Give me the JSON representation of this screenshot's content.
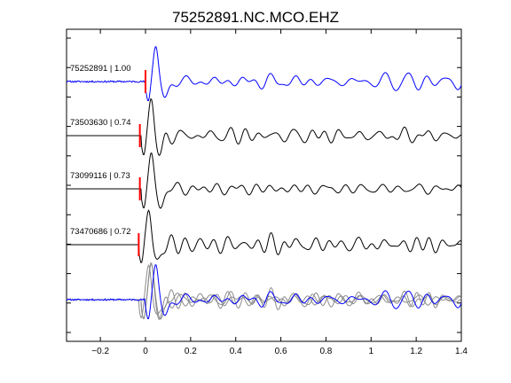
{
  "chart_data": {
    "type": "line",
    "title": "75252891.NC.MCO.EHZ",
    "xlabel": "",
    "ylabel": "",
    "xlim": [
      -0.35,
      1.4
    ],
    "xticks": [
      -0.2,
      0,
      0.2,
      0.4,
      0.6,
      0.8,
      1,
      1.2,
      1.4
    ],
    "xtick_labels": [
      "−0.2",
      "0",
      "0.2",
      "0.4",
      "0.6",
      "0.8",
      "1",
      "1.2",
      "1.4"
    ],
    "grid": false,
    "legend": "none",
    "pick_marker_color": "#ff0000",
    "colors": {
      "master": "#0000ff",
      "correlated": "#000000",
      "overlay": "#8c8c8c"
    },
    "series": [
      {
        "label": "75252891 | 1.00",
        "event_id": "75252891",
        "correlation": 1.0,
        "color": "#0000ff",
        "pick_time": 0.0,
        "onset_time": 0.0,
        "seed": 11
      },
      {
        "label": "73503630 | 0.74",
        "event_id": "73503630",
        "correlation": 0.74,
        "color": "#000000",
        "pick_time": -0.025,
        "onset_time": -0.02,
        "seed": 23
      },
      {
        "label": "73099116 | 0.73",
        "event_id": "73099116",
        "correlation": 0.73,
        "color": "#000000",
        "pick_time": -0.025,
        "onset_time": -0.02,
        "seed": 37
      },
      {
        "label": "73470686 | 0.72",
        "event_id": "73470686",
        "correlation": 0.72,
        "color": "#000000",
        "pick_time": -0.03,
        "onset_time": -0.03,
        "seed": 41
      }
    ],
    "overlay": {
      "description_shown": false,
      "master_index": 0
    }
  }
}
